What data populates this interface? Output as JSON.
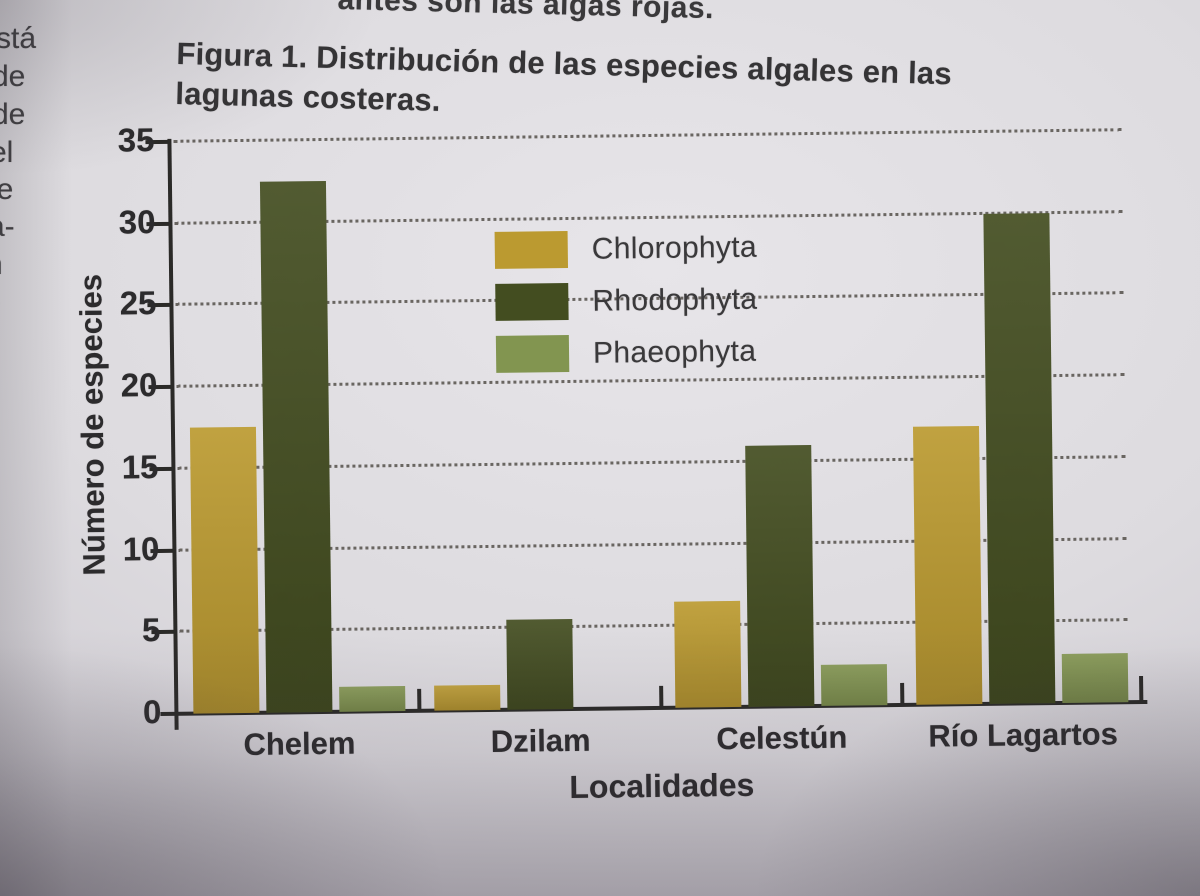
{
  "page": {
    "top_text_fragment": "antes son las algas rojas.",
    "left_margin_fragments": [
      "stá",
      "de",
      "de",
      "el",
      "le",
      "a-",
      "n",
      "e",
      "b"
    ],
    "figure_title_lines": [
      "Figura 1. Distribución de las especies algales en las",
      "lagunas costeras."
    ]
  },
  "chart_data": {
    "type": "bar",
    "title": "Figura 1. Distribución de las especies algales en las lagunas costeras.",
    "categories": [
      "Chelem",
      "Dzilam",
      "Celestún",
      "Río Lagartos"
    ],
    "series": [
      {
        "name": "Chlorophyta",
        "color": "#bb9a30",
        "values": [
          17.5,
          1.5,
          6.5,
          17
        ]
      },
      {
        "name": "Rhodophyta",
        "color": "#434d20",
        "values": [
          32.5,
          5.5,
          16,
          30
        ]
      },
      {
        "name": "Phaeophyta",
        "color": "#829550",
        "values": [
          1.5,
          0,
          2.5,
          3
        ]
      }
    ],
    "xlabel": "Localidades",
    "ylabel": "Número de especies",
    "ylim": [
      0,
      35
    ],
    "yticks": [
      0,
      5,
      10,
      15,
      20,
      25,
      30,
      35
    ],
    "grid": "horizontal dotted lines at 5-35",
    "legend_position": "inside upper-center",
    "axis_color": "#2b2a28"
  }
}
